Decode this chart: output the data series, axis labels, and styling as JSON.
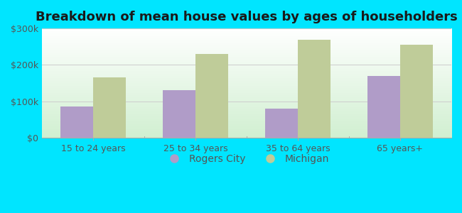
{
  "title": "Breakdown of mean house values by ages of householders",
  "categories": [
    "15 to 24 years",
    "25 to 34 years",
    "35 to 64 years",
    "65 years+"
  ],
  "rogers_city": [
    85000,
    130000,
    80000,
    170000
  ],
  "michigan": [
    165000,
    230000,
    270000,
    255000
  ],
  "rogers_city_color": "#b09cc8",
  "michigan_color": "#bfcc99",
  "background_color": "#00e5ff",
  "ylim": [
    0,
    300000
  ],
  "yticks": [
    0,
    100000,
    200000,
    300000
  ],
  "ytick_labels": [
    "$0",
    "$100k",
    "$200k",
    "$300k"
  ],
  "legend_rogers": "Rogers City",
  "legend_michigan": "Michigan",
  "bar_width": 0.32,
  "title_fontsize": 13,
  "tick_fontsize": 9,
  "legend_fontsize": 10,
  "tick_color": "#555555",
  "grid_color": "#cccccc"
}
